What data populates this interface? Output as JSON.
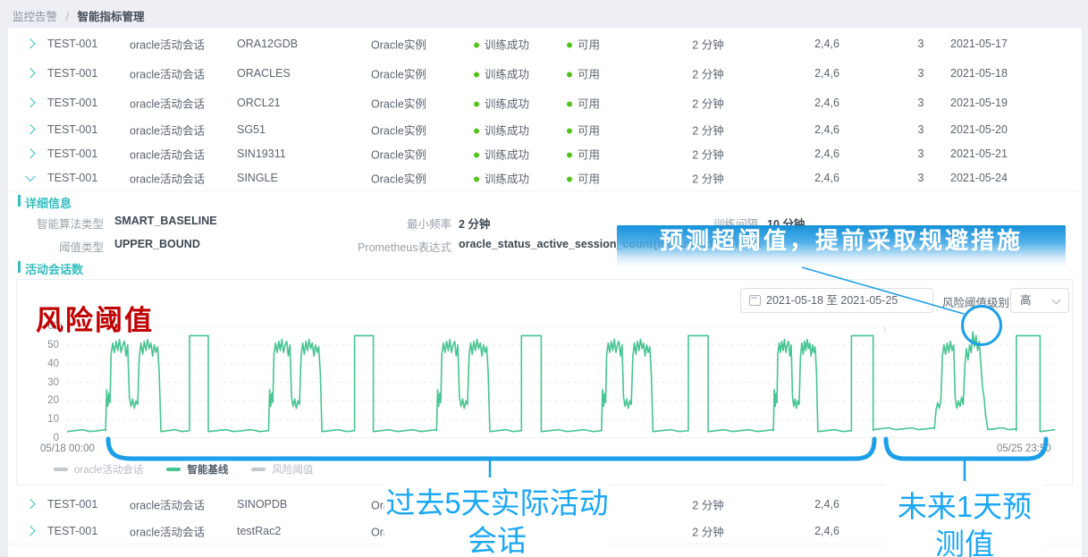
{
  "breadcrumb": {
    "parent": "监控告警",
    "separator": "/",
    "current": "智能指标管理"
  },
  "table": {
    "rows": [
      {
        "name": "TEST-001",
        "metric": "oracle活动会话",
        "instance": "ORA12GDB",
        "type": "Oracle实例",
        "train_status": "训练成功",
        "avail_status": "可用",
        "frequency": "2 分钟",
        "levels": "2,4,6",
        "count": "3",
        "date": "2021-05-17",
        "expanded": false
      },
      {
        "name": "TEST-001",
        "metric": "oracle活动会话",
        "instance": "ORACLES",
        "type": "Oracle实例",
        "train_status": "训练成功",
        "avail_status": "可用",
        "frequency": "2 分钟",
        "levels": "2,4,6",
        "count": "3",
        "date": "2021-05-18",
        "expanded": false
      },
      {
        "name": "TEST-001",
        "metric": "oracle活动会话",
        "instance": "ORCL21",
        "type": "Oracle实例",
        "train_status": "训练成功",
        "avail_status": "可用",
        "frequency": "2 分钟",
        "levels": "2,4,6",
        "count": "3",
        "date": "2021-05-19",
        "expanded": false
      },
      {
        "name": "TEST-001",
        "metric": "oracle活动会话",
        "instance": "SG51",
        "type": "Oracle实例",
        "train_status": "训练成功",
        "avail_status": "可用",
        "frequency": "2 分钟",
        "levels": "2,4,6",
        "count": "3",
        "date": "2021-05-20",
        "expanded": false
      },
      {
        "name": "TEST-001",
        "metric": "oracle活动会话",
        "instance": "SIN19311",
        "type": "Oracle实例",
        "train_status": "训练成功",
        "avail_status": "可用",
        "frequency": "2 分钟",
        "levels": "2,4,6",
        "count": "3",
        "date": "2021-05-21",
        "expanded": false
      },
      {
        "name": "TEST-001",
        "metric": "oracle活动会话",
        "instance": "SINGLE",
        "type": "Oracle实例",
        "train_status": "训练成功",
        "avail_status": "可用",
        "frequency": "2 分钟",
        "levels": "2,4,6",
        "count": "3",
        "date": "2021-05-24",
        "expanded": true
      }
    ],
    "bottom_rows": [
      {
        "name": "TEST-001",
        "metric": "oracle活动会话",
        "instance": "SINOPDB",
        "type": "Oracle实例",
        "train_status": "",
        "avail_status": "",
        "frequency": "2 分钟",
        "levels": "2,4,6",
        "count": "",
        "date": "",
        "expanded": false
      },
      {
        "name": "TEST-001",
        "metric": "oracle活动会话",
        "instance": "testRac2",
        "type": "Oracle实例",
        "train_status": "",
        "avail_status": "",
        "frequency": "2 分钟",
        "levels": "2,4,6",
        "count": "",
        "date": "",
        "expanded": false
      }
    ],
    "status_dot_color": "#52c41a"
  },
  "detail": {
    "title": "详细信息",
    "fields": [
      {
        "label": "智能算法类型",
        "value": "SMART_BASELINE"
      },
      {
        "label": "最小频率",
        "value": "2 分钟"
      },
      {
        "label": "训练间隔",
        "value": "10 分钟"
      },
      {
        "label": "阈值类型",
        "value": "UPPER_BOUND"
      },
      {
        "label": "Prometheus表达式",
        "value": "oracle_status_active_session_count{instanceId=\"${insta"
      }
    ]
  },
  "chart_section": {
    "title": "活动会话数",
    "date_range": "2021-05-18 至 2021-05-25",
    "risk_level_label": "风险阈值级别",
    "risk_level_value": "高",
    "legend": [
      {
        "label": "oracle活动会话",
        "color": "#c3c7cc",
        "text_color": "#b6bcc3",
        "active": false
      },
      {
        "label": "智能基线",
        "color": "#45c58f",
        "text_color": "#525f6b",
        "active": true
      },
      {
        "label": "风险阈值",
        "color": "#c3c7cc",
        "text_color": "#b6bcc3",
        "active": false
      }
    ]
  },
  "annotations": {
    "risk_threshold_text": "风险阈值",
    "callout_text": "预测超阈值，提前采取规避措施",
    "past_label": "过去5天实际活动会话",
    "future_label": "未来1天预测值",
    "accent_blue": "#1b9fe8",
    "red": "#c00000"
  },
  "chart_data": {
    "type": "line",
    "title": "活动会话数",
    "series": [
      {
        "name": "智能基线",
        "color": "#45c58f"
      }
    ],
    "ylim": [
      0,
      60
    ],
    "yticks": [
      60,
      50,
      40,
      30,
      20,
      10,
      0
    ],
    "x_start_label": "05/18 00:00",
    "x_end_label": "05/25 23:50",
    "grid": "dashed-horizontal",
    "legend_position": "bottom-left",
    "baseline": 4,
    "rect_level": 55,
    "prediction_split_fraction": 0.828,
    "segments": [
      {
        "t": "flat",
        "a": 0.0,
        "b": 0.039
      },
      {
        "t": "burst",
        "a": 0.039,
        "b": 0.095
      },
      {
        "t": "flat",
        "a": 0.095,
        "b": 0.124
      },
      {
        "t": "rect",
        "a": 0.124,
        "b": 0.143
      },
      {
        "t": "flat",
        "a": 0.143,
        "b": 0.204
      },
      {
        "t": "burst",
        "a": 0.204,
        "b": 0.258
      },
      {
        "t": "flat",
        "a": 0.258,
        "b": 0.291
      },
      {
        "t": "rect",
        "a": 0.291,
        "b": 0.31
      },
      {
        "t": "flat",
        "a": 0.31,
        "b": 0.374
      },
      {
        "t": "burst",
        "a": 0.374,
        "b": 0.428
      },
      {
        "t": "flat",
        "a": 0.428,
        "b": 0.46
      },
      {
        "t": "rect",
        "a": 0.46,
        "b": 0.48
      },
      {
        "t": "flat",
        "a": 0.48,
        "b": 0.541
      },
      {
        "t": "burst",
        "a": 0.541,
        "b": 0.593
      },
      {
        "t": "flat",
        "a": 0.593,
        "b": 0.629
      },
      {
        "t": "rect",
        "a": 0.629,
        "b": 0.649
      },
      {
        "t": "flat",
        "a": 0.649,
        "b": 0.715
      },
      {
        "t": "burst",
        "a": 0.715,
        "b": 0.76
      },
      {
        "t": "flat",
        "a": 0.76,
        "b": 0.794
      },
      {
        "t": "rect",
        "a": 0.794,
        "b": 0.816
      },
      {
        "t": "flat",
        "a": 0.816,
        "b": 0.878,
        "v": 5
      },
      {
        "t": "burst",
        "a": 0.878,
        "b": 0.932,
        "p": "spike"
      },
      {
        "t": "flat",
        "a": 0.932,
        "b": 0.961,
        "v": 5
      },
      {
        "t": "rect",
        "a": 0.961,
        "b": 0.985
      },
      {
        "t": "flat",
        "a": 0.985,
        "b": 1.0
      }
    ],
    "profiles": {
      "burst": [
        [
          0,
          4
        ],
        [
          0.02,
          26
        ],
        [
          0.04,
          17
        ],
        [
          0.06,
          24
        ],
        [
          0.08,
          19
        ],
        [
          0.1,
          45
        ],
        [
          0.13,
          51
        ],
        [
          0.16,
          46
        ],
        [
          0.19,
          52
        ],
        [
          0.22,
          47
        ],
        [
          0.25,
          53
        ],
        [
          0.28,
          46
        ],
        [
          0.31,
          50
        ],
        [
          0.34,
          52
        ],
        [
          0.37,
          44
        ],
        [
          0.4,
          50
        ],
        [
          0.43,
          22
        ],
        [
          0.46,
          17
        ],
        [
          0.49,
          21
        ],
        [
          0.52,
          16
        ],
        [
          0.55,
          20
        ],
        [
          0.58,
          18
        ],
        [
          0.61,
          44
        ],
        [
          0.64,
          51
        ],
        [
          0.67,
          45
        ],
        [
          0.7,
          52
        ],
        [
          0.73,
          47
        ],
        [
          0.76,
          53
        ],
        [
          0.79,
          48
        ],
        [
          0.82,
          51
        ],
        [
          0.85,
          44
        ],
        [
          0.88,
          50
        ],
        [
          0.91,
          46
        ],
        [
          0.94,
          49
        ],
        [
          0.97,
          35
        ],
        [
          1,
          4
        ]
      ],
      "spike": [
        [
          0,
          5
        ],
        [
          0.03,
          15
        ],
        [
          0.06,
          19
        ],
        [
          0.09,
          16
        ],
        [
          0.12,
          20
        ],
        [
          0.15,
          44
        ],
        [
          0.18,
          50
        ],
        [
          0.21,
          45
        ],
        [
          0.24,
          51
        ],
        [
          0.27,
          46
        ],
        [
          0.3,
          52
        ],
        [
          0.33,
          47
        ],
        [
          0.36,
          50
        ],
        [
          0.39,
          21
        ],
        [
          0.42,
          16
        ],
        [
          0.45,
          20
        ],
        [
          0.48,
          17
        ],
        [
          0.51,
          22
        ],
        [
          0.54,
          18
        ],
        [
          0.57,
          38
        ],
        [
          0.6,
          48
        ],
        [
          0.63,
          42
        ],
        [
          0.66,
          50
        ],
        [
          0.69,
          46
        ],
        [
          0.72,
          57
        ],
        [
          0.75,
          49
        ],
        [
          0.78,
          55
        ],
        [
          0.81,
          47
        ],
        [
          0.84,
          52
        ],
        [
          0.87,
          40
        ],
        [
          0.9,
          28
        ],
        [
          0.93,
          22
        ],
        [
          0.96,
          12
        ],
        [
          1,
          5
        ]
      ]
    }
  }
}
